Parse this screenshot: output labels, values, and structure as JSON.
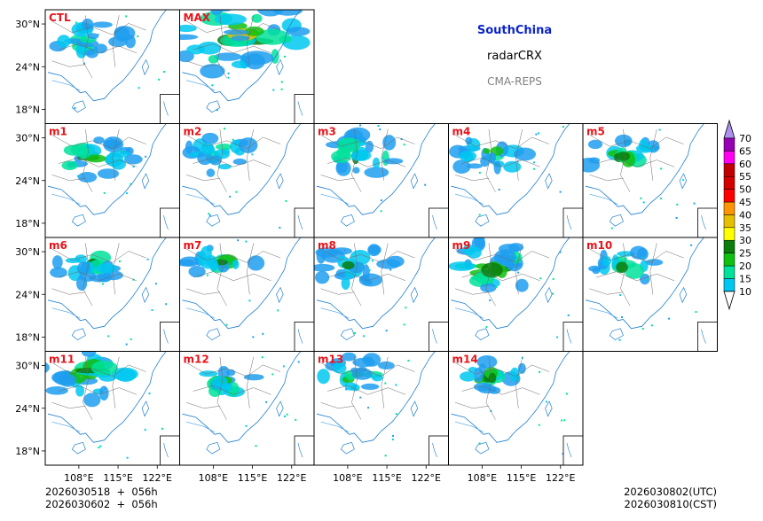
{
  "titles": {
    "region": "SouthChina",
    "variable": "radarCRX",
    "model": "CMA-REPS"
  },
  "time": {
    "init_line": "2026030518  +  056h",
    "init_line_cst": "2026030602  +  056h",
    "valid_utc": "2026030802(UTC)",
    "valid_cst": "2026030810(CST)"
  },
  "chart_data": {
    "type": "heatmap",
    "description_title": "SouthChina radarCRX CMA-REPS",
    "panels": [
      "CTL",
      "MAX",
      "m1",
      "m2",
      "m3",
      "m4",
      "m5",
      "m6",
      "m7",
      "m8",
      "m9",
      "m10",
      "m11",
      "m12",
      "m13",
      "m14"
    ],
    "panel_label_color": "#e8141b",
    "lon_ticks": [
      "108°E",
      "115°E",
      "122°E"
    ],
    "lon_values": [
      108,
      115,
      122
    ],
    "lat_ticks": [
      "30°N",
      "24°N",
      "18°N"
    ],
    "lat_values": [
      30,
      24,
      18
    ],
    "xlim": [
      102,
      126
    ],
    "ylim": [
      16,
      32
    ],
    "colorbar": {
      "levels": [
        10,
        15,
        20,
        25,
        30,
        35,
        40,
        45,
        50,
        55,
        60,
        65,
        70
      ],
      "labels": [
        "10",
        "15",
        "20",
        "25",
        "30",
        "35",
        "40",
        "45",
        "50",
        "55",
        "60",
        "65",
        "70"
      ],
      "colors": [
        "#1e9ef0",
        "#00c8f0",
        "#00e29a",
        "#10c010",
        "#0a7d0a",
        "#ffff00",
        "#e6c000",
        "#ff9600",
        "#ff0000",
        "#d40000",
        "#c00000",
        "#ff00f0",
        "#9600b4",
        "#ad90f0"
      ],
      "extend": "both"
    }
  }
}
